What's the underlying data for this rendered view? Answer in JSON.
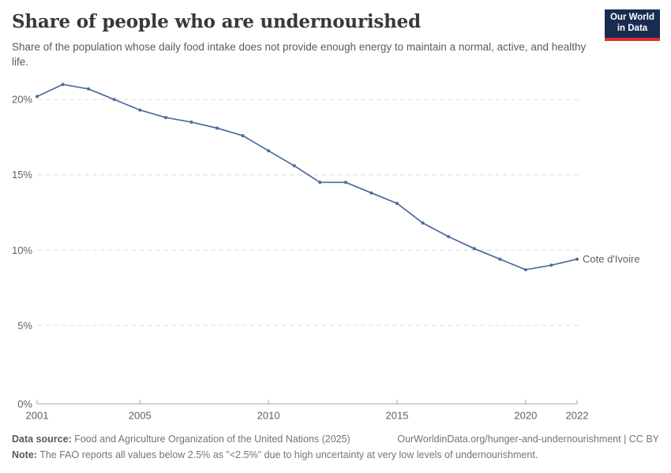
{
  "header": {
    "title": "Share of people who are undernourished",
    "subtitle": "Share of the population whose daily food intake does not provide enough energy to maintain a normal, active, and healthy life."
  },
  "logo": {
    "line1": "Our World",
    "line2": "in Data",
    "bg_color": "#182c51",
    "bar_color": "#d8342c"
  },
  "chart_data": {
    "type": "line",
    "title": "Share of people who are undernourished",
    "x": [
      2001,
      2002,
      2003,
      2004,
      2005,
      2006,
      2007,
      2008,
      2009,
      2010,
      2011,
      2012,
      2013,
      2014,
      2015,
      2016,
      2017,
      2018,
      2019,
      2020,
      2021,
      2022
    ],
    "series": [
      {
        "name": "Cote d'Ivoire",
        "color": "#4c6a9c",
        "values": [
          20.2,
          21.0,
          20.7,
          20.0,
          19.3,
          18.8,
          18.5,
          18.1,
          17.6,
          16.6,
          15.6,
          14.5,
          14.5,
          13.8,
          13.1,
          11.8,
          10.9,
          10.1,
          9.4,
          8.7,
          9.0,
          9.4
        ]
      }
    ],
    "xticks": [
      2001,
      2005,
      2010,
      2015,
      2020,
      2022
    ],
    "yticks": [
      0,
      5,
      10,
      15,
      20
    ],
    "ytick_suffix": "%",
    "xlim": [
      2001,
      2022
    ],
    "ylim": [
      0,
      22
    ],
    "grid": "horizontal-dashed",
    "grid_color": "#dcdcdc",
    "axis_color": "#a6a6a6",
    "legend_position": "end-of-line-label",
    "end_label": "Cote d'Ivoire"
  },
  "footer": {
    "data_source_label": "Data source:",
    "data_source_text": " Food and Agriculture Organization of the United Nations (2025)",
    "link_text": "OurWorldinData.org/hunger-and-undernourishment | CC BY",
    "note_label": "Note:",
    "note_text": " The FAO reports all values below 2.5% as \"<2.5%\" due to high uncertainty at very low levels of undernourishment."
  }
}
